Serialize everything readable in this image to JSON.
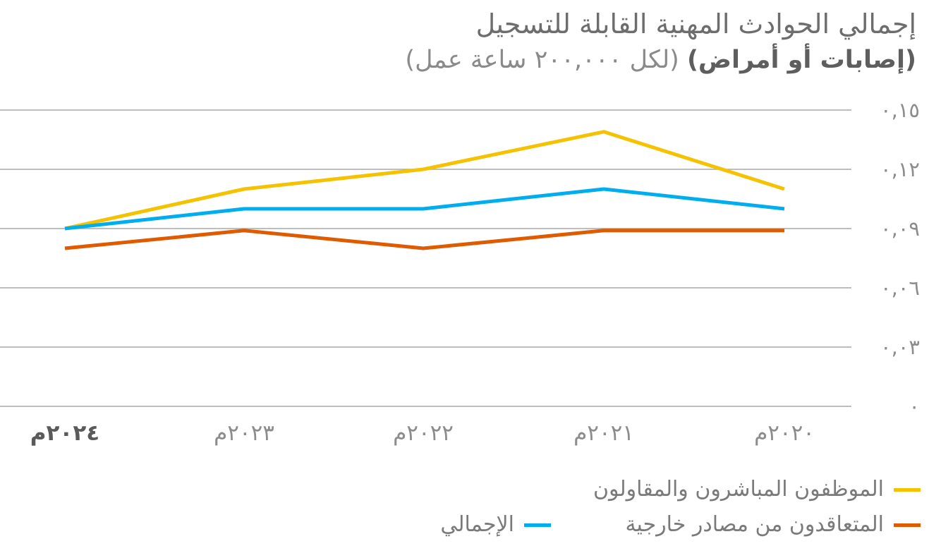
{
  "header": {
    "title": "إجمالي الحوادث المهنية القابلة للتسجيل",
    "subtitle_bold": "(إصابات أو أمراض)",
    "subtitle_regular": "(لكل ٢٠٠,٠٠٠ ساعة عمل)"
  },
  "chart_data": {
    "type": "line",
    "categories": [
      "٢٠٢٤م",
      "٢٠٢٣م",
      "٢٠٢٢م",
      "٢٠٢١م",
      "٢٠٢٠م"
    ],
    "highlight_category": "٢٠٢٤م",
    "y_ticks": [
      {
        "value": 0.15,
        "label": "٠,١٥"
      },
      {
        "value": 0.12,
        "label": "٠,١٢"
      },
      {
        "value": 0.09,
        "label": "٠,٠٩"
      },
      {
        "value": 0.06,
        "label": "٠,٠٦"
      },
      {
        "value": 0.03,
        "label": "٠,٠٣"
      },
      {
        "value": 0,
        "label": "٠"
      }
    ],
    "ylim": [
      0,
      0.15
    ],
    "grid": true,
    "legend_position": "bottom-right",
    "series": [
      {
        "name": "الموظفون المباشرون والمقاولون",
        "color": "#F5C200",
        "values": [
          0.09,
          0.11,
          0.12,
          0.139,
          0.11
        ]
      },
      {
        "name": "المتعاقدون من مصادر خارجية",
        "color": "#E05A00",
        "values": [
          0.08,
          0.089,
          0.08,
          0.089,
          0.089
        ]
      },
      {
        "name": "الإجمالي",
        "color": "#00AEEF",
        "values": [
          0.09,
          0.1,
          0.1,
          0.11,
          0.1
        ]
      }
    ]
  }
}
